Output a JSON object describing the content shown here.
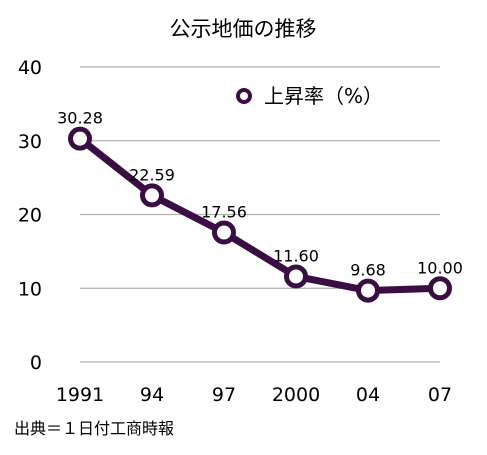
{
  "chart_data": {
    "type": "line",
    "title": "公示地価の推移",
    "categories": [
      "1991",
      "94",
      "97",
      "2000",
      "04",
      "07"
    ],
    "series": [
      {
        "name": "上昇率（%）",
        "values": [
          30.28,
          22.59,
          17.56,
          11.6,
          9.68,
          10.0
        ]
      }
    ],
    "data_labels": [
      "30.28",
      "22.59",
      "17.56",
      "11.60",
      "9.68",
      "10.00"
    ],
    "y_ticks": [
      "0",
      "10",
      "20",
      "30",
      "40"
    ],
    "ylim": [
      0,
      40
    ],
    "xlabel": "",
    "ylabel": "",
    "grid": true,
    "legend_position": "top-right",
    "line_color": "#3a0d43",
    "grid_color": "#b0b0b0"
  },
  "source_note": "出典＝１日付工商時報"
}
